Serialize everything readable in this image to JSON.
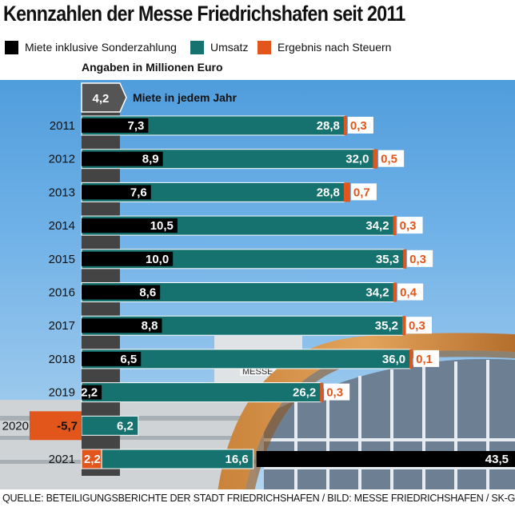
{
  "title": "Kennzahlen der Messe Friedrichshafen seit 2011",
  "legend": [
    {
      "label": "Miete inklusive Sonderzahlung",
      "color": "#000000"
    },
    {
      "label": "Umsatz",
      "color": "#16726f"
    },
    {
      "label": "Ergebnis nach Steuern",
      "color": "#e2561b"
    }
  ],
  "unit_note": "Angaben in Millionen Euro",
  "rent_note": {
    "value": "4,2",
    "label": "Miete in jedem Jahr"
  },
  "source": "QUELLE: BETEILIGUNGSBERICHTE DER STADT FRIEDRICHSHAFEN / BILD: MESSE FRIEDRICHSHAFEN / SK-GRAFIK: MÜLLER",
  "photo_sign": "MESSE",
  "chart_data": {
    "type": "bar",
    "title": "Kennzahlen der Messe Friedrichshafen seit 2011",
    "unit": "Millionen Euro",
    "categories": [
      "2011",
      "2012",
      "2013",
      "2014",
      "2015",
      "2016",
      "2017",
      "2018",
      "2019",
      "2020",
      "2021"
    ],
    "series": [
      {
        "name": "Miete inklusive Sonderzahlung",
        "values": [
          7.3,
          8.9,
          7.6,
          10.5,
          10.0,
          8.6,
          8.8,
          6.5,
          2.2,
          null,
          43.5
        ],
        "labels": [
          "7,3",
          "8,9",
          "7,6",
          "10,5",
          "10,0",
          "8,6",
          "8,8",
          "6,5",
          "2,2",
          "",
          "43,5"
        ]
      },
      {
        "name": "Umsatz",
        "values": [
          28.8,
          32.0,
          28.8,
          34.2,
          35.3,
          34.2,
          35.2,
          36.0,
          26.2,
          6.2,
          16.6
        ],
        "labels": [
          "28,8",
          "32,0",
          "28,8",
          "34,2",
          "35,3",
          "34,2",
          "35,2",
          "36,0",
          "26,2",
          "6,2",
          "16,6"
        ]
      },
      {
        "name": "Ergebnis nach Steuern",
        "values": [
          0.3,
          0.5,
          0.7,
          0.3,
          0.3,
          0.4,
          0.3,
          0.1,
          0.3,
          -5.7,
          2.2
        ],
        "labels": [
          "0,3",
          "0,5",
          "0,7",
          "0,3",
          "0,3",
          "0,4",
          "0,3",
          "0,1",
          "0,3",
          "-5,7",
          "2,2"
        ]
      }
    ],
    "constant_rent": {
      "value": 4.2,
      "label": "4,2",
      "text": "Miete in jedem Jahr"
    }
  },
  "colors": {
    "rent": "#000000",
    "revenue": "#16726f",
    "result": "#e2561b",
    "rent_marker": "#444444"
  }
}
